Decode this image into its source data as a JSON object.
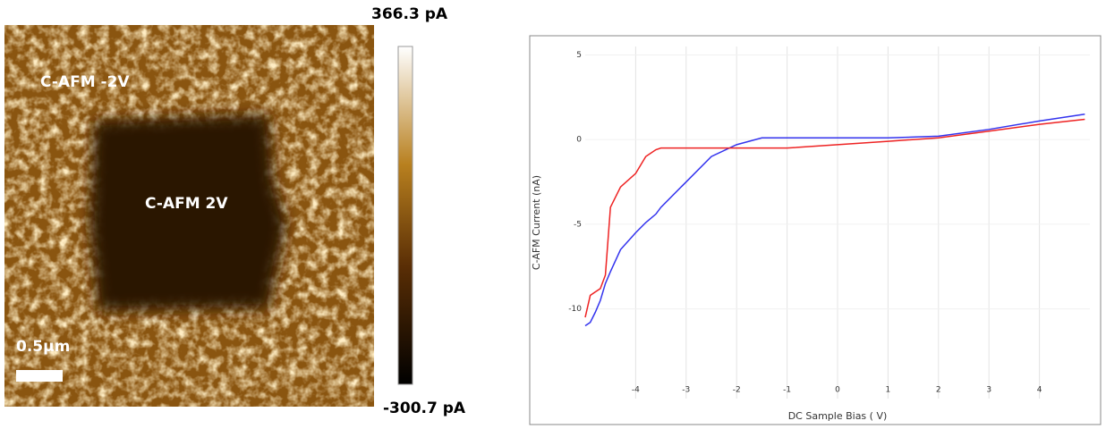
{
  "afm_image": {
    "labels": [
      "C-AFM -2V",
      "C-AFM 2V"
    ],
    "scale_bar": "0.5µm",
    "colorbar_max": "366.3 pA",
    "colorbar_min": "-300.7 pA"
  },
  "chart_data": {
    "type": "line",
    "xlabel": "DC Sample Bias ( V)",
    "ylabel": "C-AFM Current (nA)",
    "x": [
      -5,
      -4.9,
      -4.8,
      -4.7,
      -4.6,
      -4.5,
      -4.3,
      -4,
      -3.8,
      -3.6,
      -3.5,
      -3,
      -2.5,
      -2,
      -1.5,
      -1,
      0,
      1,
      2,
      3,
      4,
      4.9
    ],
    "series": [
      {
        "color": "#3333ee",
        "values": [
          -11,
          -10.8,
          -10.2,
          -9.5,
          -8.5,
          -7.8,
          -6.5,
          -5.5,
          -4.9,
          -4.4,
          -4,
          -2.5,
          -1,
          -0.3,
          0.1,
          0.1,
          0.1,
          0.1,
          0.2,
          0.6,
          1.1,
          1.5
        ]
      },
      {
        "color": "#ee2222",
        "values": [
          -10.5,
          -9.2,
          -9,
          -8.8,
          -8,
          -4,
          -2.8,
          -2,
          -1,
          -0.6,
          -0.5,
          -0.5,
          -0.5,
          -0.5,
          -0.5,
          -0.5,
          -0.3,
          -0.1,
          0.1,
          0.5,
          0.9,
          1.2
        ]
      }
    ],
    "xlim": [
      -5,
      5
    ],
    "ylim": [
      -15.3,
      5.5
    ],
    "xticks": [
      -4,
      -3,
      -2,
      -1,
      0,
      1,
      2,
      3,
      4
    ],
    "yticks": [
      -10,
      -5,
      0,
      5
    ],
    "grid": true
  }
}
